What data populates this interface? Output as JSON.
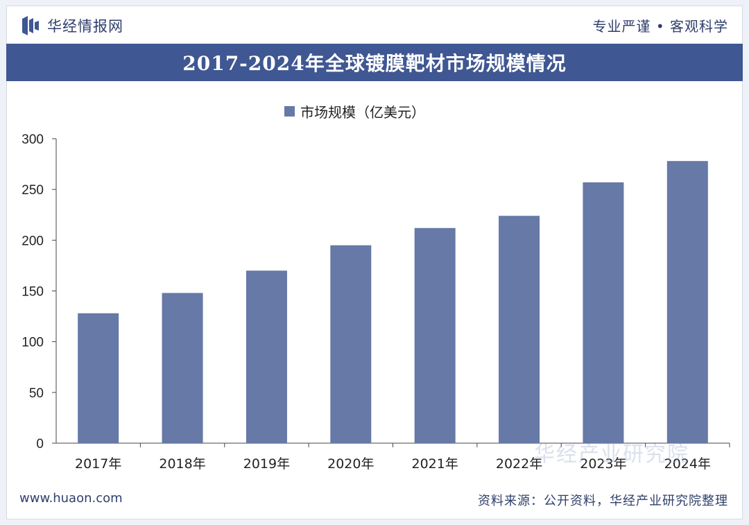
{
  "header": {
    "brand": "华经情报网",
    "slogan": "专业严谨 • 客观科学"
  },
  "chart_title": "2017-2024年全球镀膜靶材市场规模情况",
  "footer": {
    "url": "www.huaon.com",
    "source": "资料来源：公开资料，华经产业研究院整理"
  },
  "watermark": "华经产业研究院",
  "colors": {
    "bar": "#6679a7",
    "title_band": "#3f5792",
    "text": "#2f3f6b"
  },
  "chart_data": {
    "type": "bar",
    "categories": [
      "2017年",
      "2018年",
      "2019年",
      "2020年",
      "2021年",
      "2022年",
      "2023年",
      "2024年"
    ],
    "series": [
      {
        "name": "市场规模（亿美元）",
        "values": [
          128,
          148,
          170,
          195,
          212,
          224,
          257,
          278
        ]
      }
    ],
    "ylim": [
      0,
      300
    ],
    "yticks": [
      0,
      50,
      100,
      150,
      200,
      250,
      300
    ],
    "grid": false,
    "legend_position": "top-center"
  }
}
